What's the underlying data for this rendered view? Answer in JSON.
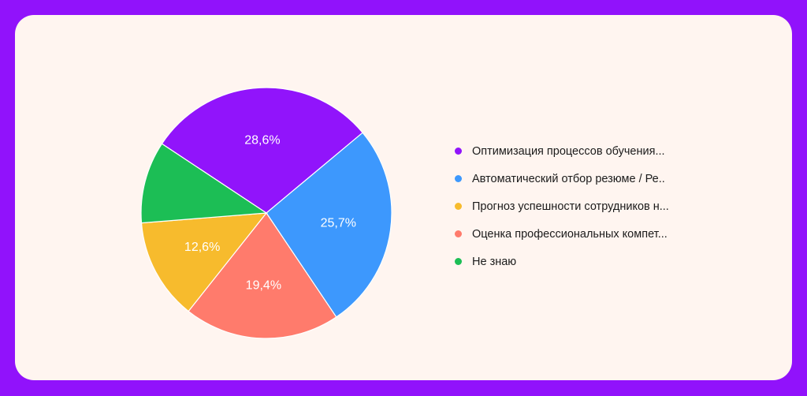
{
  "chart_data": {
    "type": "pie",
    "slices": [
      {
        "label": "Оптимизация процессов обучения...",
        "value": 28.6,
        "value_label": "28,6%",
        "color": "#9114fb"
      },
      {
        "label": "Автоматический отбор резюме / Ре..",
        "value": 25.7,
        "value_label": "25,7%",
        "color": "#3d98fd"
      },
      {
        "label": "Оценка профессиональных компет...",
        "value": 19.4,
        "value_label": "19,4%",
        "color": "#ff7b6c"
      },
      {
        "label": "Прогноз успешности сотрудников н...",
        "value": 12.6,
        "value_label": "12,6%",
        "color": "#f7bb2d"
      },
      {
        "label": "Не знаю",
        "value": 10.2,
        "value_label": "",
        "color": "#1cbe55"
      }
    ],
    "legend": [
      {
        "label": "Оптимизация процессов обучения...",
        "color": "#9114fb"
      },
      {
        "label": "Автоматический отбор резюме / Ре..",
        "color": "#3d98fd"
      },
      {
        "label": "Прогноз успешности сотрудников н...",
        "color": "#f7bb2d"
      },
      {
        "label": "Оценка профессиональных компет...",
        "color": "#ff7b6c"
      },
      {
        "label": "Не знаю",
        "color": "#1cbe55"
      }
    ],
    "legend_position": "right"
  }
}
